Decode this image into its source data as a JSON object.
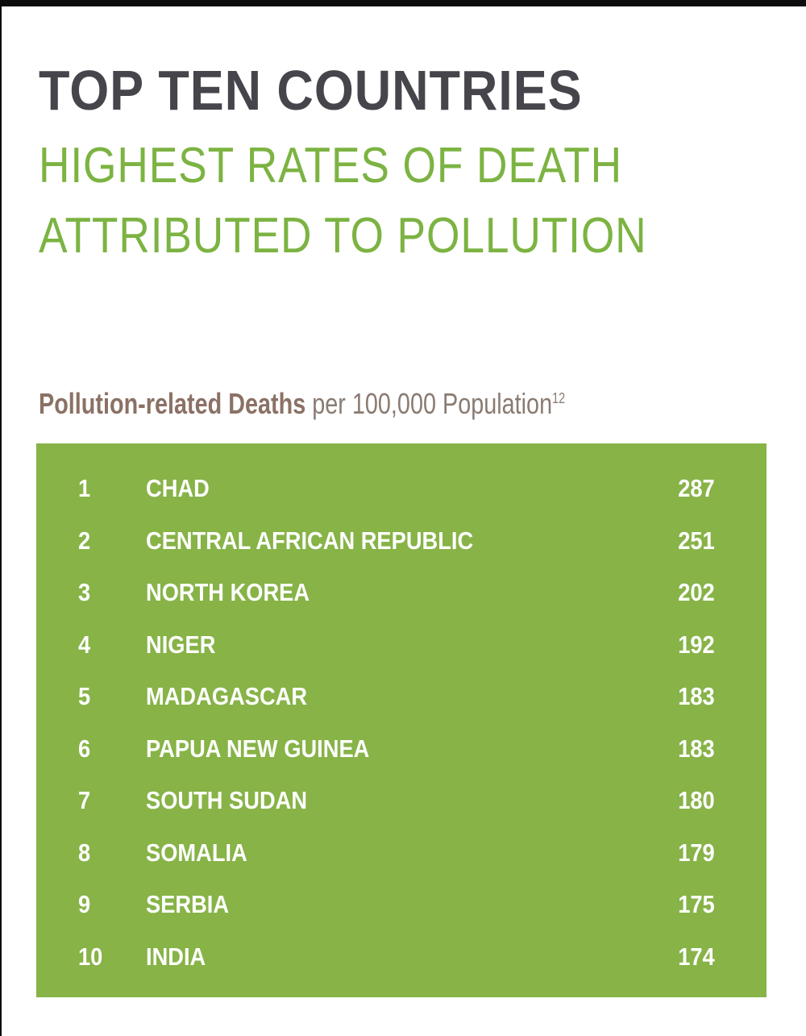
{
  "chart_data": {
    "type": "table",
    "title": "TOP TEN COUNTRIES",
    "subtitle_lines": [
      "HIGHEST RATES OF DEATH",
      "ATTRIBUTED TO POLLUTION"
    ],
    "caption_bold": "Pollution-related Deaths",
    "caption_rest": " per 100,000 Population",
    "caption_footnote": "12",
    "colors": {
      "title": "#45454b",
      "subtitle": "#7cb342",
      "table_bg": "#87b347",
      "caption": "#8a7b72"
    },
    "rows": [
      {
        "rank": "1",
        "country": "CHAD",
        "value": "287"
      },
      {
        "rank": "2",
        "country": "CENTRAL AFRICAN REPUBLIC",
        "value": "251"
      },
      {
        "rank": "3",
        "country": "NORTH KOREA",
        "value": "202"
      },
      {
        "rank": "4",
        "country": "NIGER",
        "value": "192"
      },
      {
        "rank": "5",
        "country": "MADAGASCAR",
        "value": "183"
      },
      {
        "rank": "6",
        "country": "PAPUA NEW GUINEA",
        "value": "183"
      },
      {
        "rank": "7",
        "country": "SOUTH SUDAN",
        "value": "180"
      },
      {
        "rank": "8",
        "country": "SOMALIA",
        "value": "179"
      },
      {
        "rank": "9",
        "country": "SERBIA",
        "value": "175"
      },
      {
        "rank": "10",
        "country": "INDIA",
        "value": "174"
      }
    ]
  }
}
